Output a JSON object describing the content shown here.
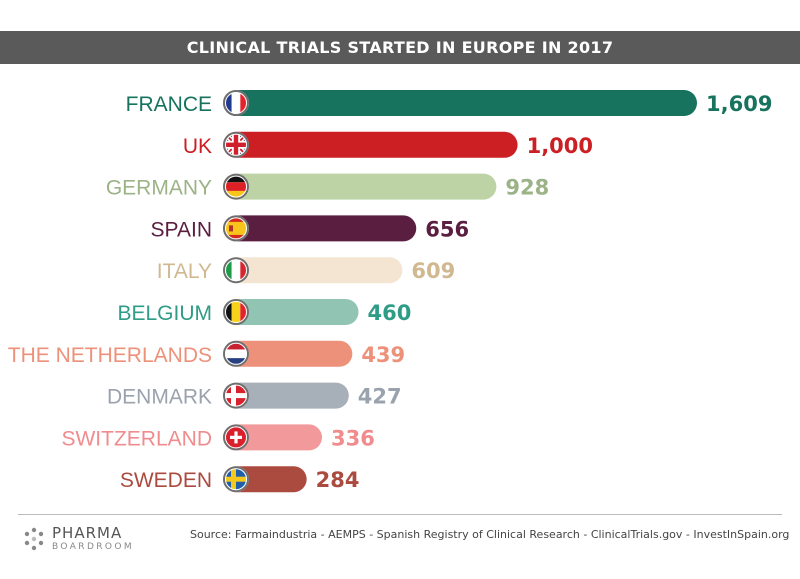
{
  "header": {
    "title": "CLINICAL TRIALS STARTED IN EUROPE IN 2017"
  },
  "chart_data": {
    "type": "bar",
    "orientation": "horizontal",
    "title": "CLINICAL TRIALS STARTED IN EUROPE IN 2017",
    "categories": [
      "FRANCE",
      "UK",
      "GERMANY",
      "SPAIN",
      "ITALY",
      "BELGIUM",
      "THE NETHERLANDS",
      "DENMARK",
      "SWITZERLAND",
      "SWEDEN"
    ],
    "values": [
      1609,
      1000,
      928,
      656,
      609,
      460,
      439,
      427,
      336,
      284
    ],
    "value_labels": [
      "1,609",
      "1,000",
      "928",
      "656",
      "609",
      "460",
      "439",
      "427",
      "336",
      "284"
    ],
    "colors": [
      "#17735e",
      "#cc1f24",
      "#bdd3a6",
      "#5a1e40",
      "#f4e5d3",
      "#92c4b3",
      "#ee917a",
      "#a7afb8",
      "#f29a9b",
      "#ab4b40"
    ],
    "label_colors": [
      "#17735e",
      "#cc1f24",
      "#9cb287",
      "#5a1e40",
      "#d0b890",
      "#2f9c87",
      "#ee917a",
      "#9aa3ad",
      "#f08b8e",
      "#ab4b40"
    ],
    "flags": [
      "france-flag",
      "uk-flag",
      "germany-flag",
      "spain-flag",
      "italy-flag",
      "belgium-flag",
      "netherlands-flag",
      "denmark-flag",
      "switzerland-flag",
      "sweden-flag"
    ],
    "xlim": [
      0,
      1609
    ],
    "grid": false,
    "legend": "none"
  },
  "footer": {
    "logo_line1": "PHARMA",
    "logo_line2": "BOARDROOM",
    "source": "Source:  Farmaindustria - AEMPS - Spanish Registry of Clinical Research - ClinicalTrials.gov - InvestInSpain.org"
  }
}
